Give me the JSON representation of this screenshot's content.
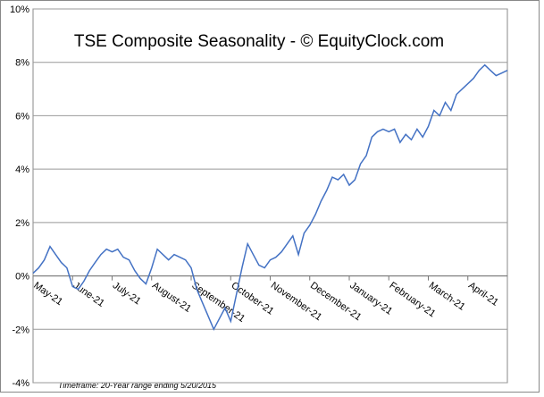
{
  "chart_data": {
    "type": "line",
    "title": "TSE Composite Seasonality - © EquityClock.com",
    "footnote": "Timeframe: 20-Year range ending 5/20/2015",
    "xlim": [
      0,
      252
    ],
    "xticks": [
      {
        "value": 0,
        "label": "May-21"
      },
      {
        "value": 21,
        "label": "June-21"
      },
      {
        "value": 42,
        "label": "July-21"
      },
      {
        "value": 63,
        "label": "August-21"
      },
      {
        "value": 84,
        "label": "September-21"
      },
      {
        "value": 105,
        "label": "October-21"
      },
      {
        "value": 126,
        "label": "November-21"
      },
      {
        "value": 147,
        "label": "December-21"
      },
      {
        "value": 168,
        "label": "January-21"
      },
      {
        "value": 189,
        "label": "February-21"
      },
      {
        "value": 210,
        "label": "March-21"
      },
      {
        "value": 231,
        "label": "April-21"
      }
    ],
    "ylim": [
      -4,
      10
    ],
    "yticks": [
      {
        "value": -4,
        "label": "-4%"
      },
      {
        "value": -2,
        "label": "-2%"
      },
      {
        "value": 0,
        "label": "0%"
      },
      {
        "value": 2,
        "label": "2%"
      },
      {
        "value": 4,
        "label": "4%"
      },
      {
        "value": 6,
        "label": "6%"
      },
      {
        "value": 8,
        "label": "8%"
      },
      {
        "value": 10,
        "label": "10%"
      }
    ],
    "grid": true,
    "x": [
      0,
      3,
      6,
      9,
      12,
      15,
      18,
      21,
      24,
      27,
      30,
      33,
      36,
      39,
      42,
      45,
      48,
      51,
      54,
      57,
      60,
      63,
      66,
      69,
      72,
      75,
      78,
      81,
      84,
      87,
      90,
      93,
      96,
      99,
      102,
      105,
      108,
      111,
      114,
      117,
      120,
      123,
      126,
      129,
      132,
      135,
      138,
      141,
      144,
      147,
      150,
      153,
      156,
      159,
      162,
      165,
      168,
      171,
      174,
      177,
      180,
      183,
      186,
      189,
      192,
      195,
      198,
      201,
      204,
      207,
      210,
      213,
      216,
      219,
      222,
      225,
      228,
      231,
      234,
      237,
      240,
      243,
      246,
      249,
      252
    ],
    "color": "#4472c4",
    "values": [
      0.1,
      0.3,
      0.6,
      1.1,
      0.8,
      0.5,
      0.3,
      -0.4,
      -0.5,
      -0.2,
      0.2,
      0.5,
      0.8,
      1.0,
      0.9,
      1.0,
      0.7,
      0.6,
      0.2,
      -0.1,
      -0.3,
      0.3,
      1.0,
      0.8,
      0.6,
      0.8,
      0.7,
      0.6,
      0.3,
      -0.5,
      -1.0,
      -1.5,
      -2.0,
      -1.6,
      -1.2,
      -1.7,
      -0.7,
      0.3,
      1.2,
      0.8,
      0.4,
      0.3,
      0.6,
      0.7,
      0.9,
      1.2,
      1.5,
      0.8,
      1.6,
      1.9,
      2.3,
      2.8,
      3.2,
      3.7,
      3.6,
      3.8,
      3.4,
      3.6,
      4.2,
      4.5,
      5.2,
      5.4,
      5.5,
      5.4,
      5.5,
      5.0,
      5.3,
      5.1,
      5.5,
      5.2,
      5.6,
      6.2,
      6.0,
      6.5,
      6.2,
      6.8,
      7.0,
      7.2,
      7.4,
      7.7,
      7.9,
      7.7,
      7.5,
      7.6,
      7.7
    ]
  }
}
